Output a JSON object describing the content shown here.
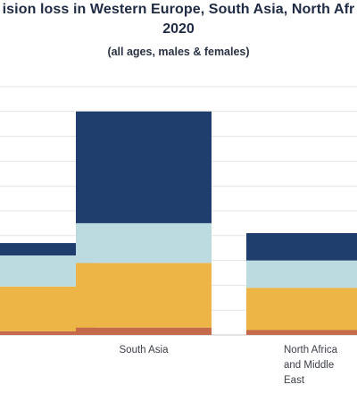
{
  "chart_data": {
    "type": "bar",
    "stacked": true,
    "title_visible_fragment": "ision loss in Western Europe, South Asia, North Afr",
    "title_line2": "2020",
    "subtitle": "(all ages, males & females)",
    "categories": [
      {
        "label": "",
        "lines": []
      },
      {
        "label": "South Asia",
        "lines": [
          "South Asia"
        ]
      },
      {
        "label": "North Africa and Middle East",
        "lines": [
          "North Africa",
          "and Middle",
          "East"
        ]
      }
    ],
    "ylim": [
      0,
      100
    ],
    "grid": true,
    "series_colors": [
      "#c56a4a",
      "#ecb545",
      "#bcdbe0",
      "#1f3e6e"
    ],
    "series": [
      {
        "values": [
          1.5,
          3,
          2
        ]
      },
      {
        "values": [
          18,
          26,
          17
        ]
      },
      {
        "values": [
          12.5,
          16,
          11
        ]
      },
      {
        "values": [
          5,
          45,
          11
        ]
      }
    ]
  }
}
